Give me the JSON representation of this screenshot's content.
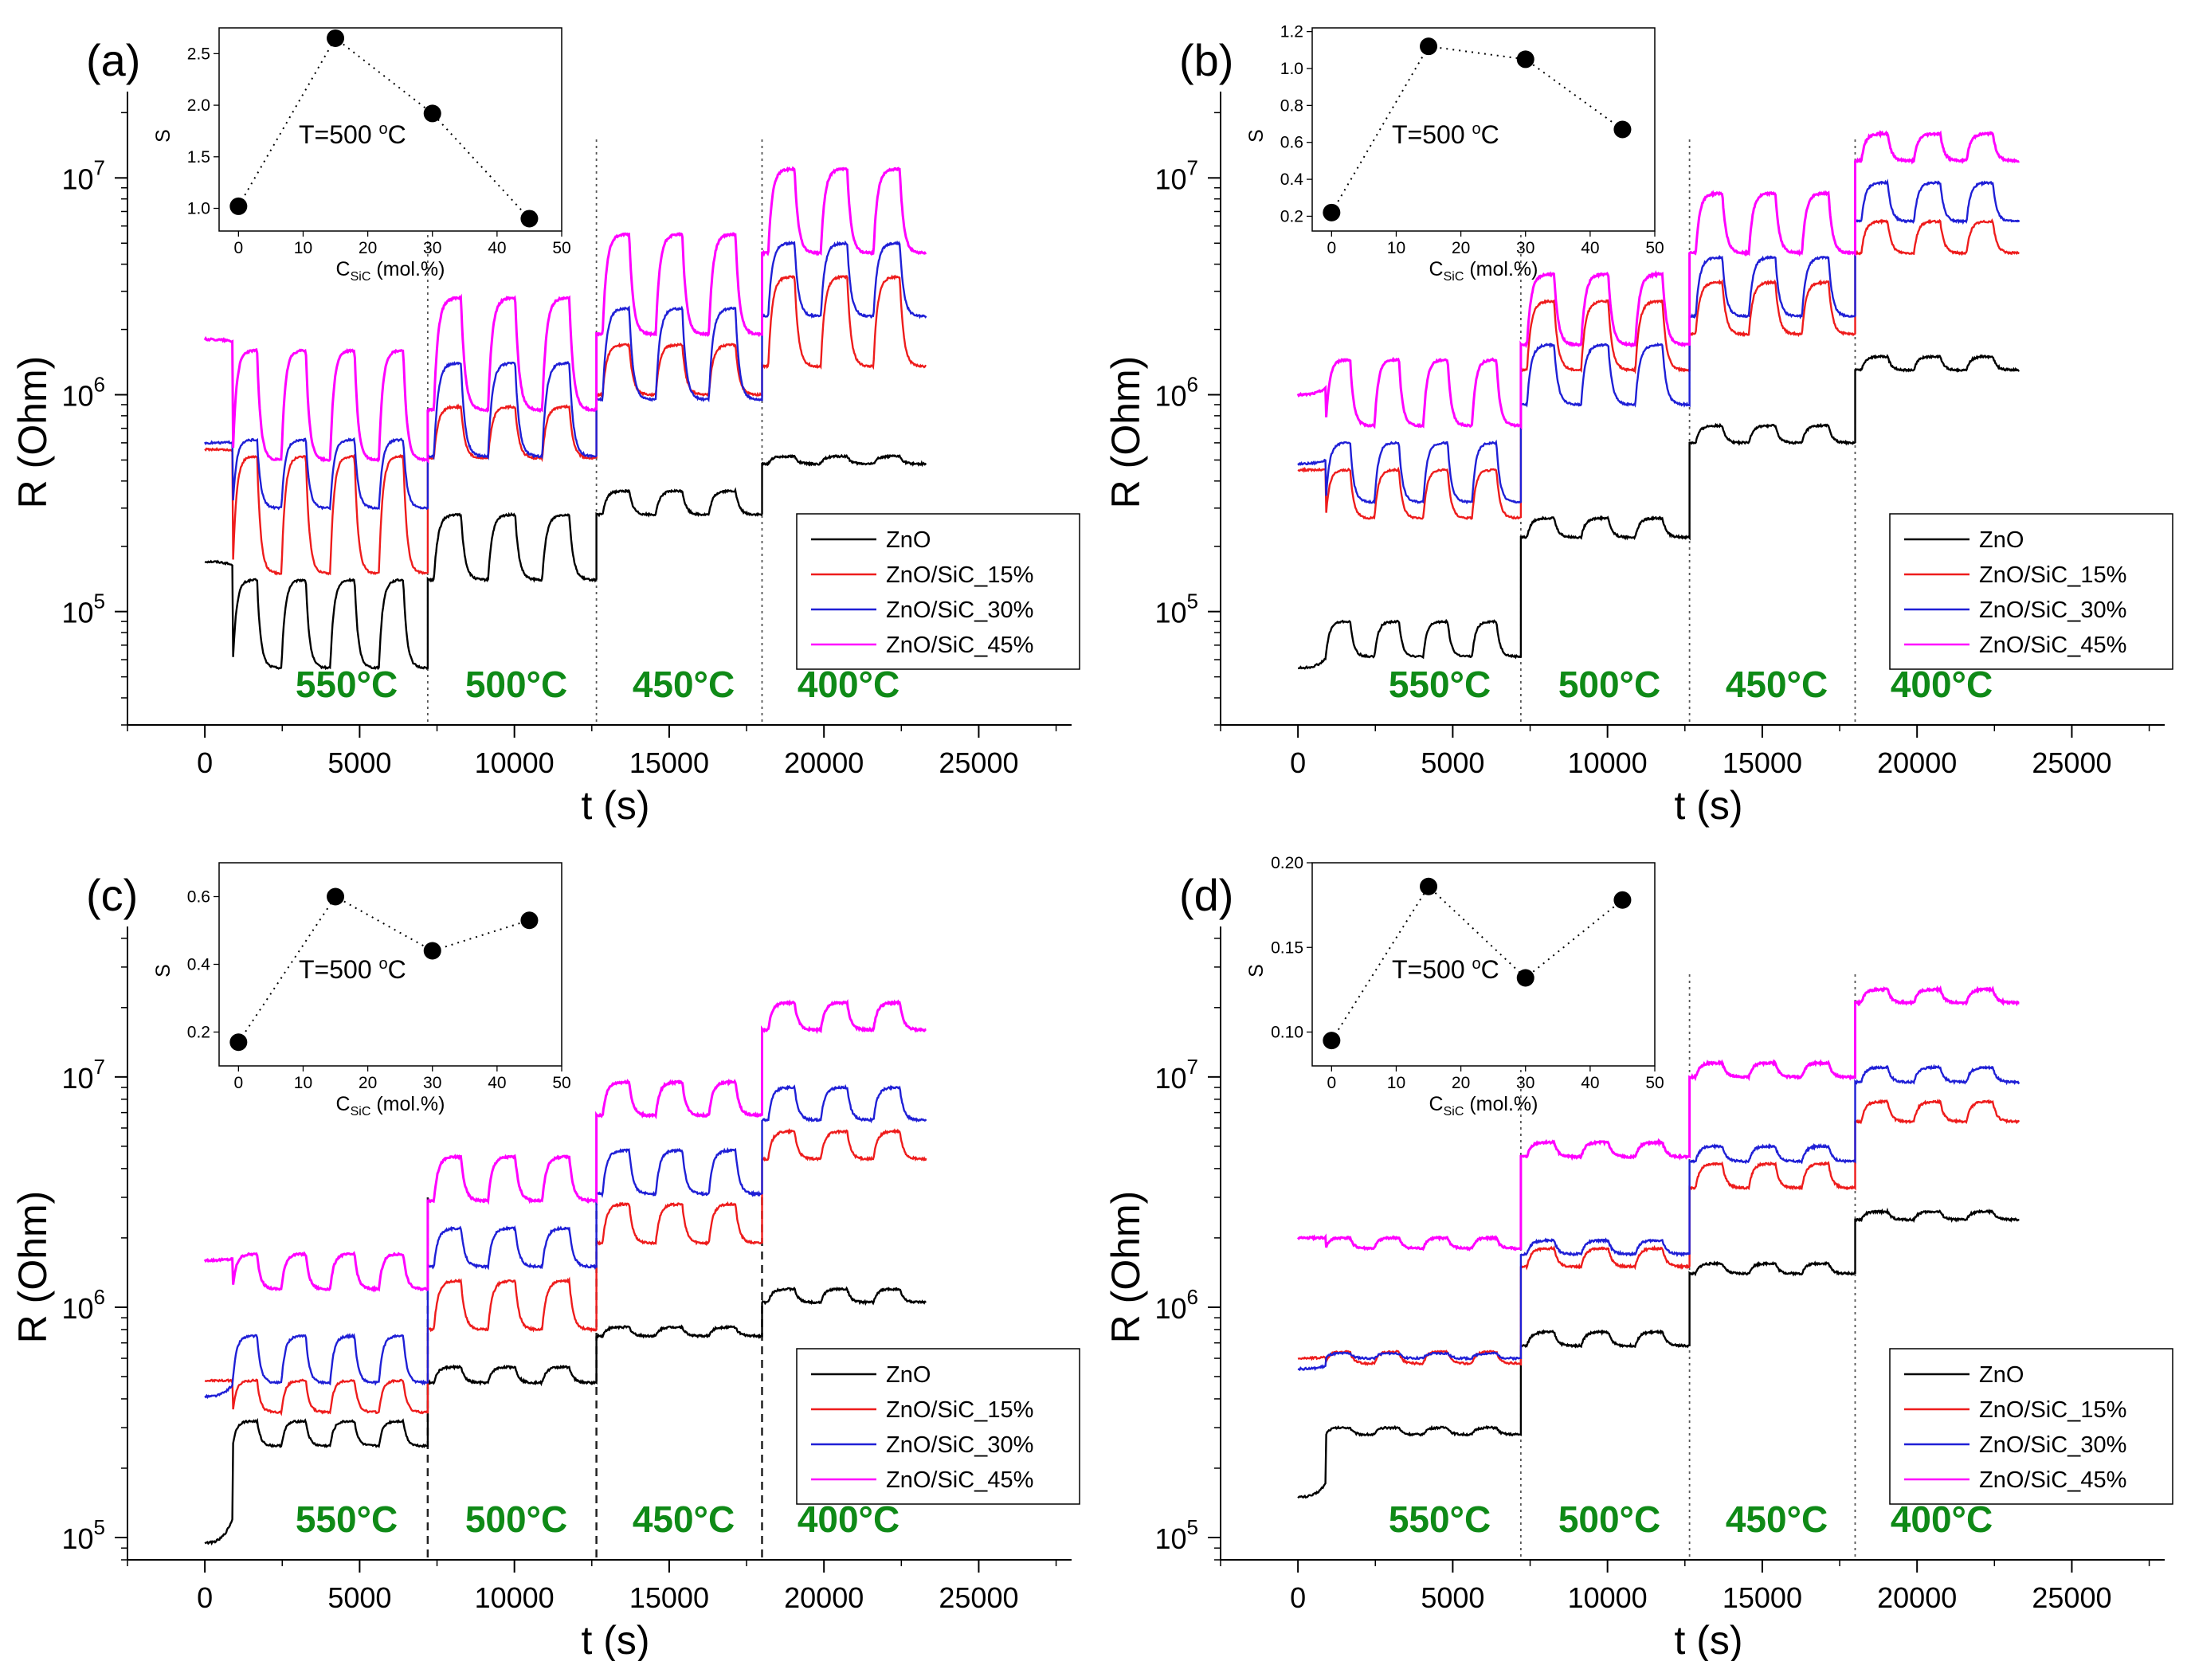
{
  "chart_data": [
    {
      "type": "line",
      "panel": "(a)",
      "xlabel": "t (s)",
      "ylabel": "R (Ohm)",
      "xlim": [
        -2500,
        28000
      ],
      "ylim": [
        30000,
        25000000
      ],
      "yscale": "log",
      "xticks": [
        0,
        5000,
        10000,
        15000,
        20000,
        25000
      ],
      "yticks": [
        {
          "v": 100000,
          "m": "10",
          "e": "5"
        },
        {
          "v": 1000000,
          "m": "10",
          "e": "6"
        },
        {
          "v": 10000000,
          "m": "10",
          "e": "7"
        }
      ],
      "boundaries": [
        7200,
        12650,
        18000
      ],
      "boundary_style": "dotted",
      "temperatures": [
        "550°C",
        "500°C",
        "450°C",
        "400°C"
      ],
      "segments": [
        [
          0,
          7200
        ],
        [
          7200,
          12650
        ],
        [
          12650,
          18000
        ],
        [
          18000,
          23300
        ]
      ],
      "series": [
        {
          "name": "ZnO",
          "color": "#000000",
          "levels": [
            [
              170000,
              55000,
              140000
            ],
            [
              140000,
              280000
            ],
            [
              280000,
              360000
            ],
            [
              480000,
              520000
            ]
          ]
        },
        {
          "name": "ZnO/SiC_15%",
          "color": "#ee1c1c",
          "levels": [
            [
              560000,
              150000,
              520000
            ],
            [
              510000,
              880000
            ],
            [
              1000000,
              1700000
            ],
            [
              1350000,
              3500000
            ]
          ]
        },
        {
          "name": "ZnO/SiC_30%",
          "color": "#1f1fd6",
          "levels": [
            [
              600000,
              300000,
              620000
            ],
            [
              520000,
              1400000
            ],
            [
              950000,
              2500000
            ],
            [
              2300000,
              5000000
            ]
          ]
        },
        {
          "name": "ZnO/SiC_45%",
          "color": "#ff00ff",
          "levels": [
            [
              1800000,
              500000,
              1600000
            ],
            [
              850000,
              2800000
            ],
            [
              1900000,
              5500000
            ],
            [
              4500000,
              11000000
            ]
          ]
        }
      ],
      "inset": {
        "xlabel_main": "C",
        "xlabel_sub": "SiC",
        "xlabel_rest": " (mol.%)",
        "ylabel": "S",
        "annotation_main": "T=500 ",
        "annotation_sup": "o",
        "annotation_rest": "C",
        "xlim": [
          -3,
          50
        ],
        "ylim": [
          0.78,
          2.75
        ],
        "xticks": [
          0,
          10,
          20,
          30,
          40,
          50
        ],
        "yticks": [
          "1.0",
          "1.5",
          "2.0",
          "2.5"
        ],
        "ytick_values": [
          1.0,
          1.5,
          2.0,
          2.5
        ],
        "x": [
          0,
          15,
          30,
          45
        ],
        "y": [
          1.02,
          2.65,
          1.92,
          0.9
        ]
      }
    },
    {
      "type": "line",
      "panel": "(b)",
      "xlabel": "t (s)",
      "ylabel": "R (Ohm)",
      "xlim": [
        -2500,
        28000
      ],
      "ylim": [
        30000,
        25000000
      ],
      "yscale": "log",
      "xticks": [
        0,
        5000,
        10000,
        15000,
        20000,
        25000
      ],
      "yticks": [
        {
          "v": 100000,
          "m": "10",
          "e": "5"
        },
        {
          "v": 1000000,
          "m": "10",
          "e": "6"
        },
        {
          "v": 10000000,
          "m": "10",
          "e": "7"
        }
      ],
      "boundaries": [
        7200,
        12650,
        18000
      ],
      "boundary_style": "dotted",
      "temperatures": [
        "550°C",
        "500°C",
        "450°C",
        "400°C"
      ],
      "segments": [
        [
          0,
          7200
        ],
        [
          7200,
          12650
        ],
        [
          12650,
          18000
        ],
        [
          18000,
          23300
        ]
      ],
      "series": [
        {
          "name": "ZnO",
          "color": "#000000",
          "levels": [
            [
              55000,
              62000,
              90000
            ],
            [
              220000,
              270000
            ],
            [
              600000,
              720000
            ],
            [
              1300000,
              1500000
            ]
          ]
        },
        {
          "name": "ZnO/SiC_15%",
          "color": "#ee1c1c",
          "levels": [
            [
              450000,
              270000,
              450000
            ],
            [
              1300000,
              2700000
            ],
            [
              1900000,
              3300000
            ],
            [
              4500000,
              6300000
            ]
          ]
        },
        {
          "name": "ZnO/SiC_30%",
          "color": "#1f1fd6",
          "levels": [
            [
              480000,
              320000,
              600000
            ],
            [
              900000,
              1700000
            ],
            [
              2300000,
              4300000
            ],
            [
              6300000,
              9500000
            ]
          ]
        },
        {
          "name": "ZnO/SiC_45%",
          "color": "#ff00ff",
          "levels": [
            [
              1000000,
              720000,
              1450000
            ],
            [
              1700000,
              3600000
            ],
            [
              4500000,
              8500000
            ],
            [
              12000000,
              16000000
            ]
          ]
        }
      ],
      "inset": {
        "xlabel_main": "C",
        "xlabel_sub": "SiC",
        "xlabel_rest": " (mol.%)",
        "ylabel": "S",
        "annotation_main": "T=500 ",
        "annotation_sup": "o",
        "annotation_rest": "C",
        "xlim": [
          -3,
          50
        ],
        "ylim": [
          0.12,
          1.22
        ],
        "xticks": [
          0,
          10,
          20,
          30,
          40,
          50
        ],
        "yticks": [
          "0.2",
          "0.4",
          "0.6",
          "0.8",
          "1.0",
          "1.2"
        ],
        "ytick_values": [
          0.2,
          0.4,
          0.6,
          0.8,
          1.0,
          1.2
        ],
        "x": [
          0,
          15,
          30,
          45
        ],
        "y": [
          0.22,
          1.12,
          1.05,
          0.67
        ]
      }
    },
    {
      "type": "line",
      "panel": "(c)",
      "xlabel": "t (s)",
      "ylabel": "R (Ohm)",
      "xlim": [
        -2500,
        28000
      ],
      "ylim": [
        80000,
        45000000
      ],
      "yscale": "log",
      "xticks": [
        0,
        5000,
        10000,
        15000,
        20000,
        25000
      ],
      "yticks": [
        {
          "v": 100000,
          "m": "10",
          "e": "5"
        },
        {
          "v": 1000000,
          "m": "10",
          "e": "6"
        },
        {
          "v": 10000000,
          "m": "10",
          "e": "7"
        }
      ],
      "boundaries": [
        7200,
        12650,
        18000
      ],
      "boundary_style": "dashed",
      "temperatures": [
        "550°C",
        "500°C",
        "450°C",
        "400°C"
      ],
      "segments": [
        [
          0,
          7200
        ],
        [
          7200,
          12650
        ],
        [
          12650,
          18000
        ],
        [
          18000,
          23300
        ]
      ],
      "series": [
        {
          "name": "ZnO",
          "color": "#000000",
          "levels": [
            [
              95000,
              250000,
              320000
            ],
            [
              470000,
              550000
            ],
            [
              750000,
              820000
            ],
            [
              1050000,
              1200000
            ]
          ]
        },
        {
          "name": "ZnO/SiC_15%",
          "color": "#ee1c1c",
          "levels": [
            [
              480000,
              350000,
              480000
            ],
            [
              800000,
              1300000
            ],
            [
              1900000,
              2800000
            ],
            [
              4400000,
              5800000
            ]
          ]
        },
        {
          "name": "ZnO/SiC_30%",
          "color": "#1f1fd6",
          "levels": [
            [
              410000,
              470000,
              750000
            ],
            [
              1500000,
              2200000
            ],
            [
              3100000,
              4800000
            ],
            [
              6500000,
              9000000
            ]
          ]
        },
        {
          "name": "ZnO/SiC_45%",
          "color": "#ff00ff",
          "levels": [
            [
              1600000,
              1200000,
              1700000
            ],
            [
              2900000,
              4500000
            ],
            [
              6800000,
              9500000
            ],
            [
              16000000,
              21000000
            ]
          ]
        }
      ],
      "inset": {
        "xlabel_main": "C",
        "xlabel_sub": "SiC",
        "xlabel_rest": " (mol.%)",
        "ylabel": "S",
        "annotation_main": "T=500 ",
        "annotation_sup": "o",
        "annotation_rest": "C",
        "xlim": [
          -3,
          50
        ],
        "ylim": [
          0.1,
          0.7
        ],
        "xticks": [
          0,
          10,
          20,
          30,
          40,
          50
        ],
        "yticks": [
          "0.2",
          "0.4",
          "0.6"
        ],
        "ytick_values": [
          0.2,
          0.4,
          0.6
        ],
        "x": [
          0,
          15,
          30,
          45
        ],
        "y": [
          0.17,
          0.6,
          0.44,
          0.53
        ]
      }
    },
    {
      "type": "line",
      "panel": "(d)",
      "xlabel": "t (s)",
      "ylabel": "R (Ohm)",
      "xlim": [
        -2500,
        28000
      ],
      "ylim": [
        80000,
        45000000
      ],
      "yscale": "log",
      "xticks": [
        0,
        5000,
        10000,
        15000,
        20000,
        25000
      ],
      "yticks": [
        {
          "v": 100000,
          "m": "10",
          "e": "5"
        },
        {
          "v": 1000000,
          "m": "10",
          "e": "6"
        },
        {
          "v": 10000000,
          "m": "10",
          "e": "7"
        }
      ],
      "boundaries": [
        7200,
        12650,
        18000
      ],
      "boundary_style": "dotted",
      "temperatures": [
        "550°C",
        "500°C",
        "450°C",
        "400°C"
      ],
      "segments": [
        [
          0,
          7200
        ],
        [
          7200,
          12650
        ],
        [
          12650,
          18000
        ],
        [
          18000,
          23300
        ]
      ],
      "series": [
        {
          "name": "ZnO",
          "color": "#000000",
          "levels": [
            [
              150000,
              280000,
              300000
            ],
            [
              680000,
              780000
            ],
            [
              1400000,
              1550000
            ],
            [
              2400000,
              2600000
            ]
          ]
        },
        {
          "name": "ZnO/SiC_15%",
          "color": "#ee1c1c",
          "levels": [
            [
              600000,
              570000,
              640000
            ],
            [
              1500000,
              1800000
            ],
            [
              3300000,
              4200000
            ],
            [
              6400000,
              7800000
            ]
          ]
        },
        {
          "name": "ZnO/SiC_30%",
          "color": "#1f1fd6",
          "levels": [
            [
              540000,
              600000,
              630000
            ],
            [
              1700000,
              1950000
            ],
            [
              4300000,
              5000000
            ],
            [
              9500000,
              11000000
            ]
          ]
        },
        {
          "name": "ZnO/SiC_45%",
          "color": "#ff00ff",
          "levels": [
            [
              2000000,
              1800000,
              2000000
            ],
            [
              4500000,
              5200000
            ],
            [
              10000000,
              11500000
            ],
            [
              21000000,
              24000000
            ]
          ]
        }
      ],
      "inset": {
        "xlabel_main": "C",
        "xlabel_sub": "SiC",
        "xlabel_rest": " (mol.%)",
        "ylabel": "S",
        "annotation_main": "T=500 ",
        "annotation_sup": "o",
        "annotation_rest": "C",
        "xlim": [
          -3,
          50
        ],
        "ylim": [
          0.08,
          0.2
        ],
        "xticks": [
          0,
          10,
          20,
          30,
          40,
          50
        ],
        "yticks": [
          "0.10",
          "0.15",
          "0.20"
        ],
        "ytick_values": [
          0.1,
          0.15,
          0.2
        ],
        "x": [
          0,
          15,
          30,
          45
        ],
        "y": [
          0.095,
          0.186,
          0.132,
          0.178
        ]
      }
    }
  ],
  "colors": {
    "temperature_text": "#0f8a17",
    "axis": "#000000"
  }
}
